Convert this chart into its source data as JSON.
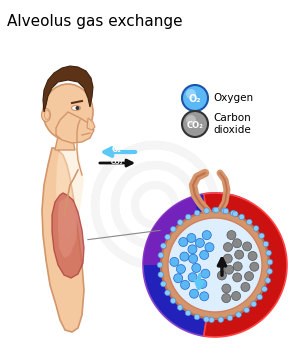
{
  "title": "Alveolus gas exchange",
  "title_fontsize": 11,
  "background_color": "#ffffff",
  "legend_oxygen_label": "Oxygen",
  "legend_co2_label": "Carbon\ndioxide",
  "oxygen_color": "#5bb8f5",
  "oxygen_dark": "#2266cc",
  "co2_color": "#999999",
  "co2_dark": "#555555",
  "arrow_o2_color": "#5bc8f5",
  "arrow_co2_color": "#111111",
  "body_skin": "#f5c9a0",
  "body_skin_dark": "#d4956a",
  "body_skin_light": "#fde8cc",
  "lung_color": "#cc6655",
  "lung_light": "#e09080",
  "hair_color": "#5c3317",
  "hair_dark": "#3d2211",
  "capillary_blue": "#3333bb",
  "capillary_red": "#cc2222",
  "capillary_purple": "#7733aa",
  "alveolus_bg": "#ddeeff",
  "alveolus_wall": "#d4956a",
  "dots_blue": "#5bb8f5",
  "dots_gray": "#888888",
  "watermark_color": "#e8e8e8",
  "line_color": "#888888"
}
